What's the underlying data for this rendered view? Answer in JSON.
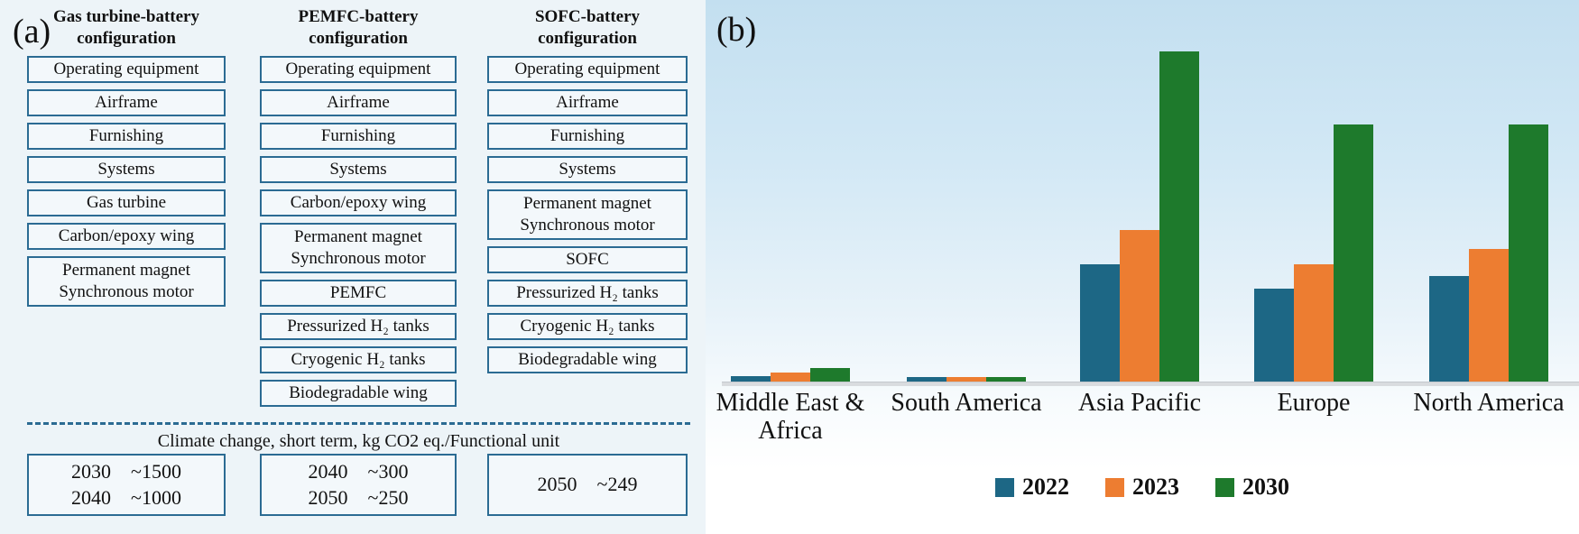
{
  "panel_a": {
    "label": "(a)",
    "columns": [
      {
        "title": "Gas turbine-battery configuration",
        "boxes": [
          "Operating equipment",
          "Airframe",
          "Furnishing",
          "Systems",
          "Gas turbine",
          "Carbon/epoxy wing",
          "Permanent magnet\nSynchronous motor"
        ]
      },
      {
        "title": "PEMFC-battery configuration",
        "boxes": [
          "Operating equipment",
          "Airframe",
          "Furnishing",
          "Systems",
          "Carbon/epoxy wing",
          "Permanent magnet\nSynchronous motor",
          "PEMFC",
          "Pressurized H₂ tanks",
          "Cryogenic H₂ tanks",
          "Biodegradable wing"
        ]
      },
      {
        "title": "SOFC-battery configuration",
        "boxes": [
          "Operating equipment",
          "Airframe",
          "Furnishing",
          "Systems",
          "Permanent magnet\nSynchronous motor",
          "SOFC",
          "Pressurized H₂ tanks",
          "Cryogenic H₂ tanks",
          "Biodegradable wing"
        ]
      }
    ],
    "footer": {
      "title": "Climate change, short term, kg CO2 eq./Functional unit",
      "boxes": [
        {
          "rows": [
            {
              "year": "2030",
              "value": "~1500"
            },
            {
              "year": "2040",
              "value": "~1000"
            }
          ]
        },
        {
          "rows": [
            {
              "year": "2040",
              "value": "~300"
            },
            {
              "year": "2050",
              "value": "~250"
            }
          ]
        },
        {
          "rows": [
            {
              "year": "2050",
              "value": "~249"
            }
          ]
        }
      ]
    }
  },
  "panel_b": {
    "label": "(b)"
  },
  "chart_data": {
    "type": "bar",
    "title": "",
    "xlabel": "",
    "ylabel": "",
    "categories": [
      "Middle East & Africa",
      "South America",
      "Asia Pacific",
      "Europe",
      "North America"
    ],
    "series": [
      {
        "name": "2022",
        "color": "#1d6785",
        "values": [
          1.6,
          1.3,
          35.5,
          28.2,
          32.0
        ]
      },
      {
        "name": "2023",
        "color": "#ed7d31",
        "values": [
          2.7,
          1.3,
          46.0,
          35.5,
          40.2
        ]
      },
      {
        "name": "2030",
        "color": "#1e7a2c",
        "values": [
          4.1,
          1.5,
          100.0,
          78.0,
          78.0
        ]
      }
    ],
    "ylim": [
      0,
      100
    ],
    "grid": false,
    "y_axis_shown": false,
    "axis_note": "no y-axis, ticks or value labels shown; values estimated relative to tallest bar (Asia Pacific 2030) = 100",
    "legend_position": "bottom",
    "background": "light-blue vertical gradient"
  }
}
